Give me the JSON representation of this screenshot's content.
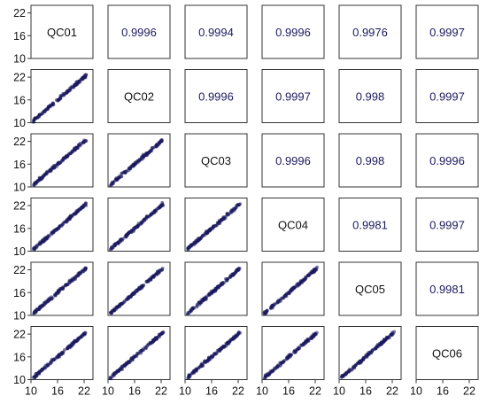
{
  "chart_data": {
    "type": "scatter",
    "variables": [
      "QC01",
      "QC02",
      "QC03",
      "QC04",
      "QC05",
      "QC06"
    ],
    "axis_range": [
      10,
      24
    ],
    "y_ticks": [
      10,
      16,
      22
    ],
    "x_ticks": [
      10,
      16,
      22
    ],
    "correlations": [
      [
        "",
        "0.9996",
        "0.9994",
        "0.9996",
        "0.9976",
        "0.9997"
      ],
      [
        "",
        "",
        "0.9996",
        "0.9997",
        "0.998",
        "0.9997"
      ],
      [
        "",
        "",
        "",
        "0.9996",
        "0.998",
        "0.9996"
      ],
      [
        "",
        "",
        "",
        "",
        "0.9981",
        "0.9997"
      ],
      [
        "",
        "",
        "",
        "",
        "",
        "0.9981"
      ],
      [
        "",
        "",
        "",
        "",
        "",
        ""
      ]
    ],
    "scatter_x_range": [
      10.5,
      22.5
    ],
    "point_color": "#1b1a5e",
    "correlation_text_color": "#1b1a5e",
    "label_text_color": "#111111"
  }
}
